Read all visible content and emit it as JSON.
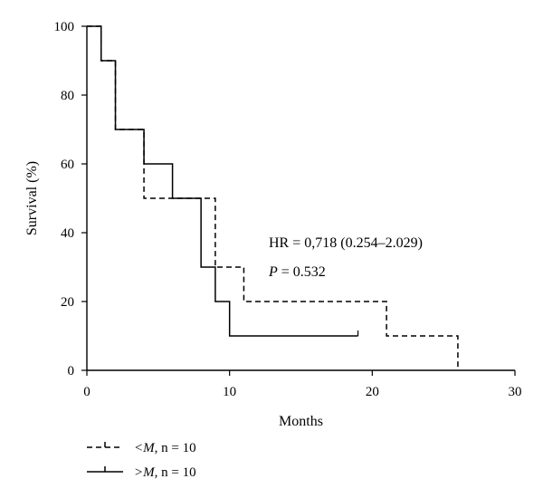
{
  "chart_data": {
    "type": "line",
    "title": "",
    "xlabel": "Months",
    "ylabel": "Survival (%)",
    "xlim": [
      0,
      30
    ],
    "ylim": [
      0,
      100
    ],
    "x_ticks": [
      0,
      10,
      20,
      30
    ],
    "y_ticks": [
      0,
      20,
      40,
      60,
      80,
      100
    ],
    "grid": false,
    "legend_position": "bottom-left",
    "annotations": [
      {
        "text": "HR = 0,718 (0.254–2.029)"
      },
      {
        "p_symbol": "P",
        "p_rest": " = 0.532"
      }
    ],
    "series": [
      {
        "legend_symbol": "<M",
        "legend_rest": ", n = 10",
        "style": "dashed",
        "points": [
          [
            0,
            100
          ],
          [
            1,
            90
          ],
          [
            2,
            70
          ],
          [
            4,
            50
          ],
          [
            6,
            50
          ],
          [
            9,
            30
          ],
          [
            11,
            20
          ],
          [
            21,
            10
          ],
          [
            26,
            0
          ]
        ]
      },
      {
        "legend_symbol": ">M",
        "legend_rest": ", n = 10",
        "style": "solid",
        "points": [
          [
            0,
            100
          ],
          [
            1,
            90
          ],
          [
            2,
            70
          ],
          [
            4,
            60
          ],
          [
            6,
            50
          ],
          [
            8,
            30
          ],
          [
            9,
            20
          ],
          [
            10,
            10
          ],
          [
            19,
            10
          ]
        ]
      }
    ]
  }
}
